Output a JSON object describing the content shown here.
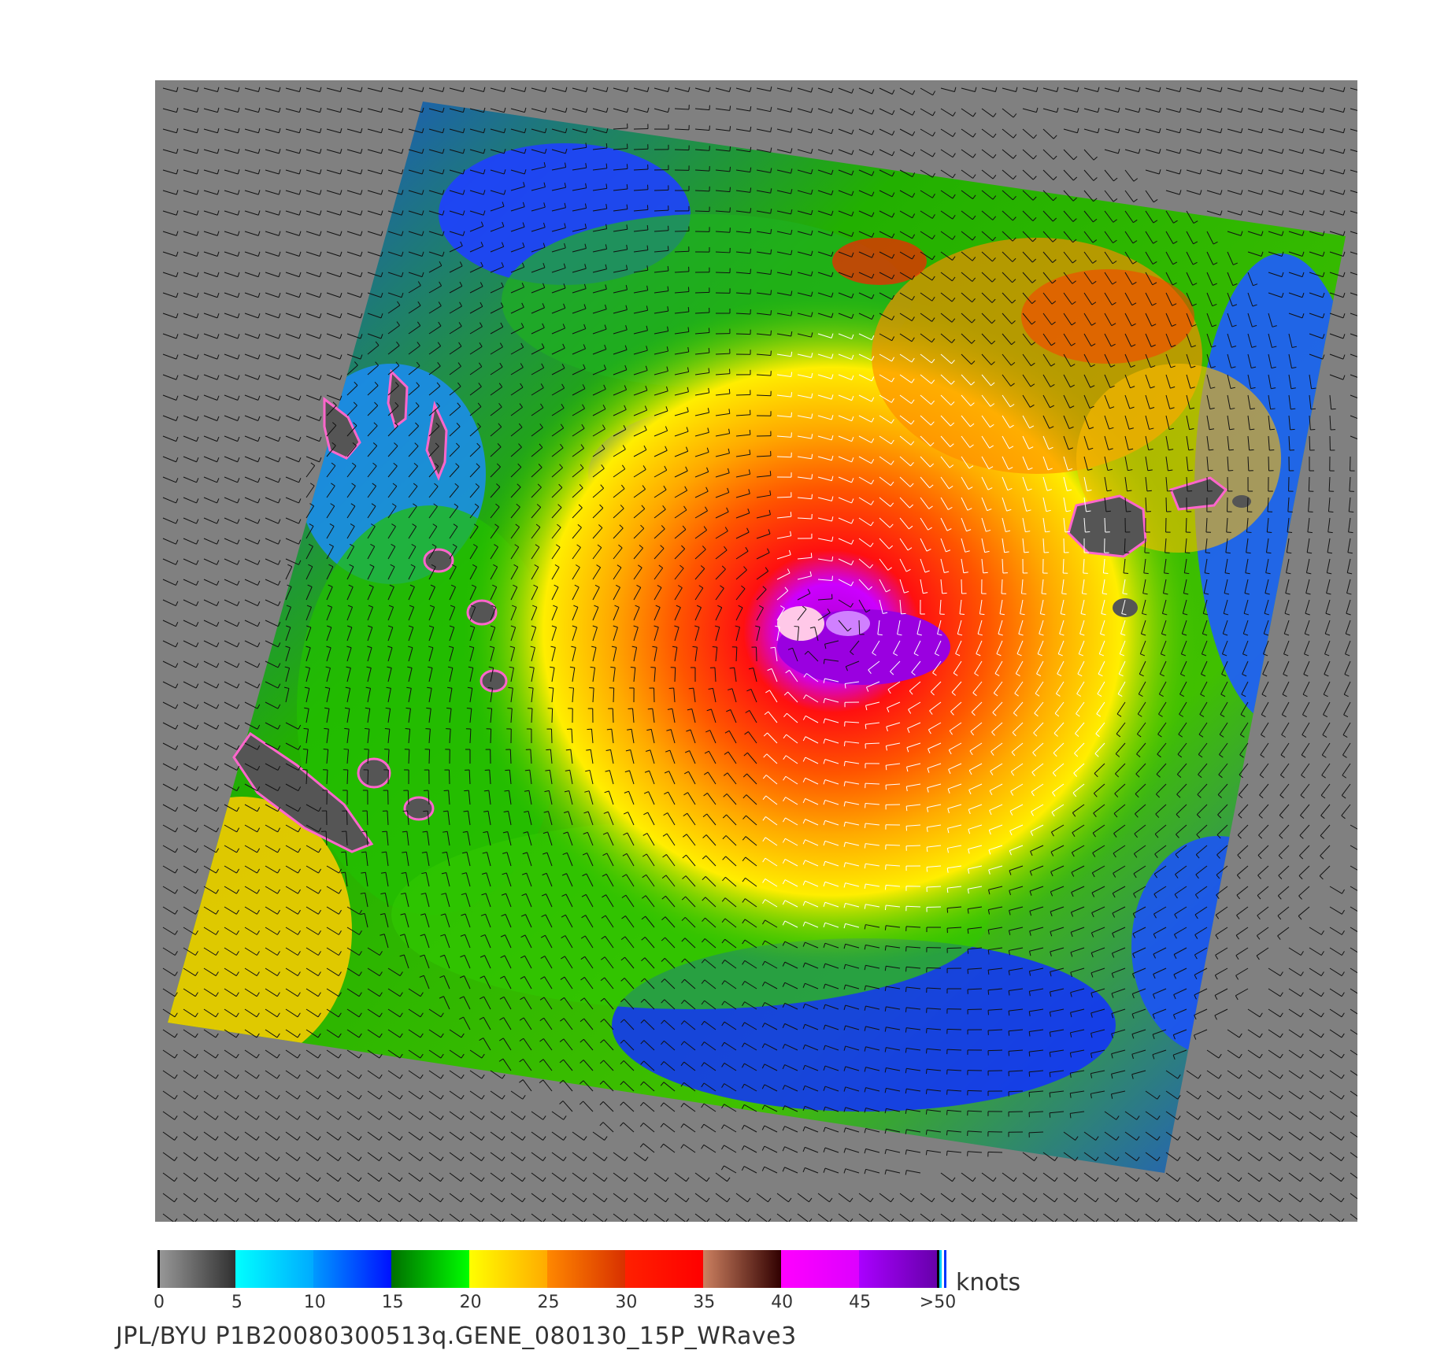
{
  "map": {
    "background_color": "#808080",
    "land_color": "#555555",
    "wind_barb_color_low": "#111111",
    "wind_barb_color_high": "#ffffff"
  },
  "legend": {
    "units": "knots",
    "ticks": [
      "0",
      "5",
      "10",
      "15",
      "20",
      "25",
      "30",
      "35",
      "40",
      "45",
      ">50"
    ],
    "bins": [
      {
        "from": 0,
        "to": 5,
        "colors": [
          "#9a9a9a",
          "#303030"
        ]
      },
      {
        "from": 5,
        "to": 10,
        "colors": [
          "#00ffff",
          "#00aaff"
        ]
      },
      {
        "from": 10,
        "to": 15,
        "colors": [
          "#0099ff",
          "#0010ff"
        ]
      },
      {
        "from": 15,
        "to": 20,
        "colors": [
          "#007000",
          "#00ff00"
        ]
      },
      {
        "from": 20,
        "to": 25,
        "colors": [
          "#ffff00",
          "#ffaa00"
        ]
      },
      {
        "from": 25,
        "to": 30,
        "colors": [
          "#ff8800",
          "#d83000"
        ]
      },
      {
        "from": 30,
        "to": 35,
        "colors": [
          "#ff2000",
          "#ff0000"
        ]
      },
      {
        "from": 35,
        "to": 40,
        "colors": [
          "#cc8060",
          "#300000"
        ]
      },
      {
        "from": 40,
        "to": 45,
        "colors": [
          "#ff00ff",
          "#dd00ff"
        ]
      },
      {
        "from": 45,
        "to": 50,
        "colors": [
          "#aa00ff",
          "#6600aa"
        ]
      }
    ]
  },
  "caption": "JPL/BYU  P1B20080300513q.GENE_080130_15P_WRave3"
}
